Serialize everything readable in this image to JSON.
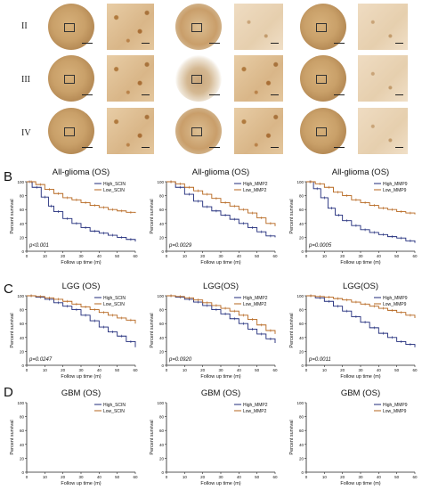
{
  "panel_a": {
    "row_labels": [
      "II",
      "III",
      "IV"
    ]
  },
  "sections": [
    {
      "letter": "B",
      "plots": [
        {
          "title": "All-glioma (OS)",
          "legend": [
            "High_SCIN",
            "Low_SCIN"
          ],
          "pvalue": "p<0.001"
        },
        {
          "title": "All-glioma (OS)",
          "legend": [
            "High_MMP2",
            "Low_MMP2"
          ],
          "pvalue": "p=0.0029"
        },
        {
          "title": "All-glioma (OS)",
          "legend": [
            "High_MMP9",
            "Low_MMP9"
          ],
          "pvalue": "p=0.0005"
        }
      ]
    },
    {
      "letter": "C",
      "plots": [
        {
          "title": "LGG (OS)",
          "legend": [
            "High_SCIN",
            "Low_SCIN"
          ],
          "pvalue": "p=0.0247"
        },
        {
          "title": "LGG(OS)",
          "legend": [
            "High_MMP2",
            "Low_MMP2"
          ],
          "pvalue": "p=0.0920"
        },
        {
          "title": "LGG(OS)",
          "legend": [
            "High_MMP9",
            "Low_MMP9"
          ],
          "pvalue": "p=0.0011"
        }
      ]
    },
    {
      "letter": "D",
      "plots": [
        {
          "title": "GBM (OS)",
          "legend": [
            "High_SCIN",
            "Low_SCIN"
          ],
          "pvalue": ""
        },
        {
          "title": "GBM (OS)",
          "legend": [
            "High_MMP2",
            "Low_MMP2"
          ],
          "pvalue": ""
        },
        {
          "title": "GBM (OS)",
          "legend": [
            "High_MMP9",
            "Low_MMP9"
          ],
          "pvalue": ""
        }
      ]
    }
  ],
  "axes": {
    "ylabel": "Percent survival",
    "xlabel": "Follow up time (m)",
    "yticks": [
      "0",
      "20",
      "40",
      "60",
      "80",
      "100"
    ],
    "xticks": [
      "0",
      "10",
      "20",
      "30",
      "40",
      "50",
      "60"
    ]
  },
  "colors": {
    "high": "#1f2a7a",
    "low": "#b5651d"
  },
  "chart_data": [
    {
      "type": "line",
      "title": "All-glioma (OS)",
      "xlabel": "Follow up time (m)",
      "ylabel": "Percent survival",
      "xlim": [
        0,
        60
      ],
      "ylim": [
        0,
        100
      ],
      "series": [
        {
          "name": "High_SCIN",
          "x": [
            0,
            3,
            8,
            12,
            15,
            20,
            25,
            30,
            35,
            40,
            45,
            50,
            55,
            60
          ],
          "y": [
            100,
            92,
            78,
            65,
            57,
            47,
            40,
            34,
            29,
            26,
            23,
            20,
            17,
            14
          ]
        },
        {
          "name": "Low_SCIN",
          "x": [
            0,
            5,
            10,
            15,
            20,
            25,
            30,
            35,
            40,
            45,
            50,
            55,
            60
          ],
          "y": [
            100,
            96,
            89,
            83,
            77,
            74,
            70,
            66,
            63,
            60,
            58,
            56,
            55
          ]
        }
      ]
    },
    {
      "type": "line",
      "title": "All-glioma (OS)",
      "xlabel": "Follow up time (m)",
      "ylabel": "Percent survival",
      "xlim": [
        0,
        60
      ],
      "ylim": [
        0,
        100
      ],
      "series": [
        {
          "name": "High_MMP2",
          "x": [
            0,
            5,
            10,
            15,
            20,
            25,
            30,
            35,
            40,
            45,
            50,
            55,
            60
          ],
          "y": [
            100,
            92,
            82,
            72,
            64,
            58,
            52,
            46,
            40,
            34,
            28,
            22,
            20
          ]
        },
        {
          "name": "Low_MMP2",
          "x": [
            0,
            5,
            10,
            15,
            20,
            25,
            30,
            35,
            40,
            45,
            50,
            55,
            60
          ],
          "y": [
            100,
            97,
            92,
            87,
            82,
            76,
            70,
            65,
            60,
            55,
            48,
            40,
            36
          ]
        }
      ]
    },
    {
      "type": "line",
      "title": "All-glioma (OS)",
      "xlabel": "Follow up time (m)",
      "ylabel": "Percent survival",
      "xlim": [
        0,
        60
      ],
      "ylim": [
        0,
        100
      ],
      "series": [
        {
          "name": "High_MMP9",
          "x": [
            0,
            4,
            8,
            12,
            16,
            20,
            25,
            30,
            35,
            40,
            45,
            50,
            55,
            60
          ],
          "y": [
            100,
            90,
            77,
            62,
            52,
            44,
            37,
            31,
            27,
            24,
            21,
            19,
            15,
            12
          ]
        },
        {
          "name": "Low_MMP9",
          "x": [
            0,
            5,
            10,
            15,
            20,
            25,
            30,
            35,
            40,
            45,
            50,
            55,
            60
          ],
          "y": [
            100,
            97,
            92,
            85,
            80,
            74,
            70,
            66,
            62,
            60,
            57,
            55,
            53
          ]
        }
      ]
    },
    {
      "type": "line",
      "title": "LGG (OS)",
      "xlabel": "Follow up time (m)",
      "ylabel": "Percent survival",
      "xlim": [
        0,
        60
      ],
      "ylim": [
        0,
        100
      ],
      "series": [
        {
          "name": "High_SCIN",
          "x": [
            0,
            5,
            10,
            15,
            20,
            25,
            30,
            35,
            40,
            45,
            50,
            55,
            60
          ],
          "y": [
            100,
            98,
            95,
            90,
            85,
            80,
            72,
            64,
            55,
            48,
            42,
            34,
            26
          ]
        },
        {
          "name": "Low_SCIN",
          "x": [
            0,
            5,
            10,
            15,
            20,
            25,
            30,
            35,
            40,
            45,
            50,
            55,
            60
          ],
          "y": [
            100,
            99,
            97,
            95,
            92,
            88,
            84,
            80,
            76,
            72,
            68,
            65,
            60
          ]
        }
      ]
    },
    {
      "type": "line",
      "title": "LGG(OS)",
      "xlabel": "Follow up time (m)",
      "ylabel": "Percent survival",
      "xlim": [
        0,
        60
      ],
      "ylim": [
        0,
        100
      ],
      "series": [
        {
          "name": "High_MMP2",
          "x": [
            0,
            5,
            10,
            15,
            20,
            25,
            30,
            35,
            40,
            45,
            50,
            55,
            60
          ],
          "y": [
            100,
            98,
            95,
            91,
            86,
            80,
            74,
            67,
            60,
            52,
            45,
            38,
            32
          ]
        },
        {
          "name": "Low_MMP2",
          "x": [
            0,
            5,
            10,
            15,
            20,
            25,
            30,
            35,
            40,
            45,
            50,
            55,
            60
          ],
          "y": [
            100,
            99,
            97,
            94,
            90,
            86,
            82,
            78,
            72,
            66,
            58,
            50,
            45
          ]
        }
      ]
    },
    {
      "type": "line",
      "title": "LGG(OS)",
      "xlabel": "Follow up time (m)",
      "ylabel": "Percent survival",
      "xlim": [
        0,
        60
      ],
      "ylim": [
        0,
        100
      ],
      "series": [
        {
          "name": "High_MMP9",
          "x": [
            0,
            5,
            10,
            15,
            20,
            25,
            30,
            35,
            40,
            45,
            50,
            55,
            60
          ],
          "y": [
            100,
            97,
            92,
            85,
            78,
            70,
            62,
            54,
            46,
            40,
            34,
            30,
            26
          ]
        },
        {
          "name": "Low_MMP9",
          "x": [
            0,
            5,
            10,
            15,
            20,
            25,
            30,
            35,
            40,
            45,
            50,
            55,
            60
          ],
          "y": [
            100,
            99,
            98,
            96,
            94,
            91,
            88,
            85,
            82,
            79,
            76,
            72,
            68
          ]
        }
      ]
    }
  ]
}
